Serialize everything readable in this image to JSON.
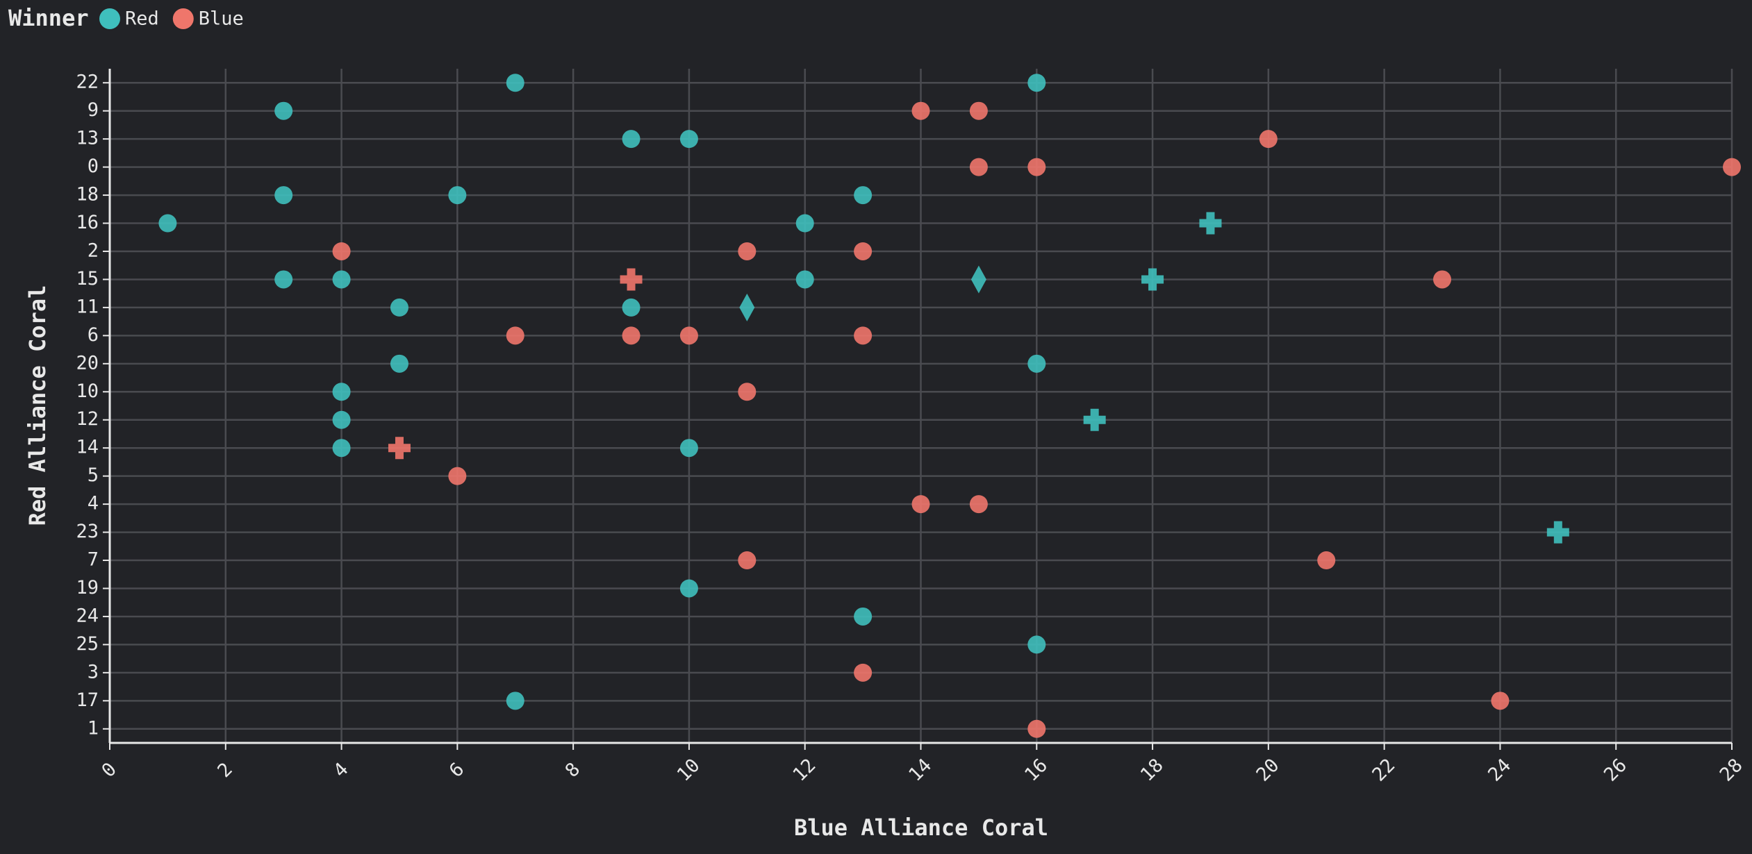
{
  "chart_data": {
    "type": "scatter",
    "x_label": "Blue Alliance Coral",
    "y_label": "Red Alliance Coral",
    "legend_title": "Winner",
    "legend_position": "top-left",
    "grid": true,
    "xlim": [
      0,
      28
    ],
    "xticks": [
      0,
      2,
      4,
      6,
      8,
      10,
      12,
      14,
      16,
      18,
      20,
      22,
      24,
      26,
      28
    ],
    "categories": [
      "22",
      "9",
      "13",
      "0",
      "18",
      "16",
      "2",
      "15",
      "11",
      "6",
      "20",
      "10",
      "12",
      "14",
      "5",
      "4",
      "23",
      "7",
      "19",
      "24",
      "25",
      "3",
      "17",
      "1"
    ],
    "series": [
      {
        "name": "Red",
        "color": "#3fbfbd",
        "x": [
          7,
          16,
          3,
          9,
          10,
          3,
          6,
          13,
          19,
          1,
          12,
          3,
          4,
          12,
          15,
          18,
          5,
          9,
          11,
          5,
          16,
          4,
          4,
          17,
          4,
          10,
          25,
          10,
          13,
          16,
          7
        ],
        "y": [
          "22",
          "22",
          "9",
          "13",
          "13",
          "18",
          "18",
          "18",
          "16",
          "16",
          "16",
          "15",
          "15",
          "15",
          "15",
          "15",
          "11",
          "11",
          "11",
          "20",
          "20",
          "10",
          "12",
          "12",
          "14",
          "14",
          "23",
          "19",
          "24",
          "25",
          "17"
        ],
        "shapes": [
          "circle",
          "circle",
          "circle",
          "circle",
          "circle",
          "circle",
          "circle",
          "circle",
          "cross",
          "circle",
          "circle",
          "circle",
          "circle",
          "circle",
          "diamond",
          "cross",
          "circle",
          "circle",
          "diamond",
          "circle",
          "circle",
          "circle",
          "circle",
          "cross",
          "circle",
          "circle",
          "cross",
          "circle",
          "circle",
          "circle",
          "circle"
        ]
      },
      {
        "name": "Blue",
        "color": "#ef766b",
        "x": [
          14,
          15,
          20,
          15,
          16,
          28,
          4,
          11,
          13,
          9,
          23,
          7,
          9,
          10,
          13,
          11,
          5,
          6,
          14,
          15,
          11,
          21,
          13,
          24,
          16
        ],
        "y": [
          "9",
          "9",
          "13",
          "0",
          "0",
          "0",
          "2",
          "2",
          "2",
          "15",
          "15",
          "6",
          "6",
          "6",
          "6",
          "10",
          "14",
          "5",
          "4",
          "4",
          "7",
          "7",
          "3",
          "17",
          "1"
        ],
        "shapes": [
          "circle",
          "circle",
          "circle",
          "circle",
          "circle",
          "circle",
          "circle",
          "circle",
          "circle",
          "cross",
          "circle",
          "circle",
          "circle",
          "circle",
          "circle",
          "circle",
          "cross",
          "circle",
          "circle",
          "circle",
          "circle",
          "circle",
          "circle",
          "circle",
          "circle"
        ]
      }
    ]
  }
}
